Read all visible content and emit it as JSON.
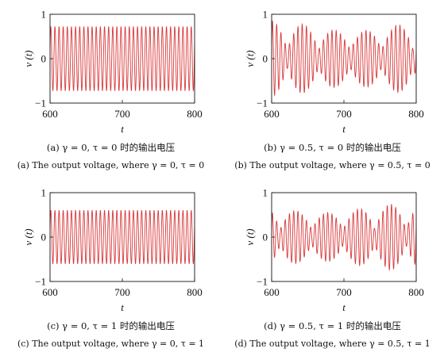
{
  "chart_data": [
    {
      "type": "line",
      "panel": "a",
      "xlabel": "t",
      "ylabel": "v (t)",
      "xlim": [
        600,
        800
      ],
      "ylim": [
        -1,
        1
      ],
      "xticks": [
        600,
        700,
        800
      ],
      "yticks": [
        -1,
        0,
        1
      ],
      "grid": false,
      "color": "#d9383a",
      "series": [
        {
          "values": {
            "amplitude": 0.72,
            "cycles": 35,
            "envelope": "constant"
          }
        }
      ],
      "caption_cn": "(a) γ = 0, τ = 0 时的输出电压",
      "caption_en": "(a) The output voltage, where γ = 0, τ = 0"
    },
    {
      "type": "line",
      "panel": "b",
      "xlabel": "t",
      "ylabel": "v (t)",
      "xlim": [
        600,
        800
      ],
      "ylim": [
        -1,
        1
      ],
      "xticks": [
        600,
        700,
        800
      ],
      "yticks": [
        -1,
        0,
        1
      ],
      "grid": false,
      "color": "#d9383a",
      "series": [
        {
          "values": {
            "amplitude": 0.85,
            "cycles": 34,
            "envelope": "modulated"
          }
        }
      ],
      "caption_cn": "(b) γ = 0.5, τ = 0 时的输出电压",
      "caption_en": "(b) The output voltage, where γ = 0.5, τ = 0"
    },
    {
      "type": "line",
      "panel": "c",
      "xlabel": "t",
      "ylabel": "v (t)",
      "xlim": [
        600,
        800
      ],
      "ylim": [
        -1,
        1
      ],
      "xticks": [
        600,
        700,
        800
      ],
      "yticks": [
        -1,
        0,
        1
      ],
      "grid": false,
      "color": "#d9383a",
      "series": [
        {
          "values": {
            "amplitude": 0.6,
            "cycles": 35,
            "envelope": "constant"
          }
        }
      ],
      "caption_cn": "(c) γ = 0, τ = 1 时的输出电压",
      "caption_en": "(c) The output voltage, where γ = 0, τ = 1"
    },
    {
      "type": "line",
      "panel": "d",
      "xlabel": "t",
      "ylabel": "v (t)",
      "xlim": [
        600,
        800
      ],
      "ylim": [
        -1,
        1
      ],
      "xticks": [
        600,
        700,
        800
      ],
      "yticks": [
        -1,
        0,
        1
      ],
      "grid": false,
      "color": "#d9383a",
      "series": [
        {
          "values": {
            "amplitude": 0.75,
            "cycles": 34,
            "envelope": "modulated"
          }
        }
      ],
      "caption_cn": "(d) γ = 0.5, τ = 1 时的输出电压",
      "caption_en": "(d) The output voltage, where γ = 0.5, τ = 1"
    }
  ]
}
